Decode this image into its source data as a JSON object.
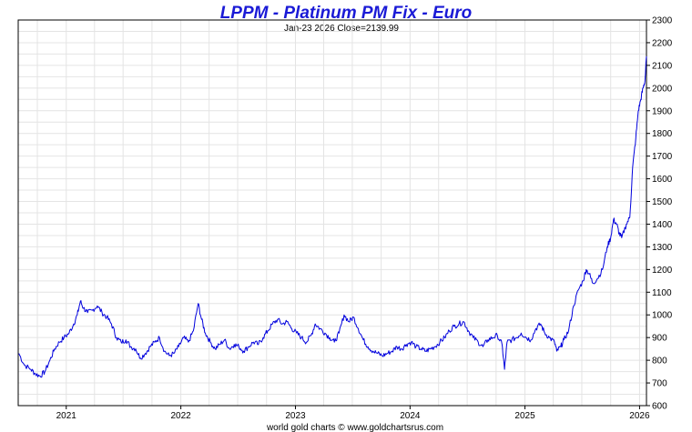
{
  "chart_data": {
    "type": "line",
    "title": "LPPM - Platinum PM Fix - Euro",
    "subtitle": "Jan-23  2026   Close=2139.99",
    "credit": "world gold charts © www.goldchartsrus.com",
    "xlabel": "",
    "ylabel": "",
    "xlim": [
      "2020-08-01",
      "2026-01-23"
    ],
    "ylim": [
      600,
      2300
    ],
    "y_ticks": [
      600,
      700,
      800,
      900,
      1000,
      1100,
      1200,
      1300,
      1400,
      1500,
      1600,
      1700,
      1800,
      1900,
      2000,
      2100,
      2200,
      2300
    ],
    "x_ticks": [
      "2021",
      "2022",
      "2023",
      "2024",
      "2025",
      "2026"
    ],
    "y_axis_side": "right",
    "grid": true,
    "colors": {
      "line": "#0000dd",
      "title": "#1a1ad6",
      "grid": "#e4e4e4"
    },
    "series": [
      {
        "x": [
          "2020-08-03",
          "2020-08-20",
          "2020-09-10",
          "2020-09-25",
          "2020-10-10",
          "2020-10-25",
          "2020-11-10",
          "2020-11-25",
          "2020-12-10",
          "2020-12-25",
          "2021-01-10",
          "2021-01-25",
          "2021-02-05",
          "2021-02-15",
          "2021-02-25",
          "2021-03-10",
          "2021-03-25",
          "2021-04-10",
          "2021-04-25",
          "2021-05-10",
          "2021-05-25",
          "2021-06-10",
          "2021-06-25",
          "2021-07-10",
          "2021-07-25",
          "2021-08-10",
          "2021-08-25",
          "2021-09-10",
          "2021-09-25",
          "2021-10-10",
          "2021-10-25",
          "2021-11-10",
          "2021-11-25",
          "2021-12-10",
          "2021-12-25",
          "2022-01-10",
          "2022-01-25",
          "2022-02-10",
          "2022-02-25",
          "2022-03-08",
          "2022-03-20",
          "2022-04-05",
          "2022-04-20",
          "2022-05-05",
          "2022-05-20",
          "2022-06-05",
          "2022-06-20",
          "2022-07-05",
          "2022-07-20",
          "2022-08-05",
          "2022-08-20",
          "2022-09-05",
          "2022-09-20",
          "2022-10-05",
          "2022-10-20",
          "2022-11-05",
          "2022-11-20",
          "2022-12-05",
          "2022-12-20",
          "2023-01-05",
          "2023-01-20",
          "2023-02-05",
          "2023-02-20",
          "2023-03-05",
          "2023-03-20",
          "2023-04-05",
          "2023-04-20",
          "2023-05-05",
          "2023-05-20",
          "2023-06-05",
          "2023-06-20",
          "2023-07-05",
          "2023-07-20",
          "2023-08-05",
          "2023-08-20",
          "2023-09-05",
          "2023-09-20",
          "2023-10-05",
          "2023-10-20",
          "2023-11-05",
          "2023-11-20",
          "2023-12-05",
          "2023-12-20",
          "2024-01-05",
          "2024-01-20",
          "2024-02-05",
          "2024-02-20",
          "2024-03-05",
          "2024-03-20",
          "2024-04-05",
          "2024-04-20",
          "2024-05-05",
          "2024-05-20",
          "2024-06-05",
          "2024-06-20",
          "2024-07-05",
          "2024-07-20",
          "2024-08-05",
          "2024-08-20",
          "2024-09-05",
          "2024-09-20",
          "2024-10-05",
          "2024-10-20",
          "2024-10-28",
          "2024-11-05",
          "2024-11-20",
          "2024-12-05",
          "2024-12-20",
          "2025-01-05",
          "2025-01-20",
          "2025-02-05",
          "2025-02-20",
          "2025-03-05",
          "2025-03-20",
          "2025-04-05",
          "2025-04-12",
          "2025-04-25",
          "2025-05-05",
          "2025-05-20",
          "2025-06-05",
          "2025-06-20",
          "2025-07-05",
          "2025-07-15",
          "2025-07-25",
          "2025-08-05",
          "2025-08-20",
          "2025-09-05",
          "2025-09-20",
          "2025-10-01",
          "2025-10-10",
          "2025-10-20",
          "2025-10-28",
          "2025-11-05",
          "2025-11-20",
          "2025-12-01",
          "2025-12-10",
          "2025-12-20",
          "2025-12-28",
          "2026-01-05",
          "2026-01-12",
          "2026-01-18",
          "2026-01-23"
        ],
        "y": [
          830,
          780,
          760,
          740,
          730,
          750,
          800,
          850,
          880,
          900,
          920,
          960,
          1000,
          1060,
          1030,
          1010,
          1020,
          1040,
          1010,
          990,
          960,
          900,
          880,
          890,
          860,
          850,
          810,
          830,
          860,
          880,
          900,
          840,
          820,
          830,
          860,
          900,
          880,
          930,
          1050,
          980,
          920,
          880,
          850,
          870,
          890,
          850,
          870,
          860,
          840,
          860,
          880,
          870,
          900,
          930,
          960,
          980,
          960,
          970,
          940,
          920,
          900,
          880,
          910,
          960,
          940,
          920,
          900,
          880,
          920,
          1000,
          970,
          990,
          940,
          890,
          860,
          840,
          830,
          820,
          830,
          840,
          860,
          850,
          870,
          880,
          860,
          850,
          840,
          850,
          860,
          880,
          900,
          930,
          950,
          960,
          970,
          930,
          900,
          880,
          860,
          890,
          900,
          910,
          870,
          760,
          880,
          890,
          900,
          920,
          900,
          890,
          940,
          960,
          920,
          900,
          880,
          840,
          860,
          890,
          930,
          1040,
          1110,
          1150,
          1200,
          1180,
          1140,
          1160,
          1200,
          1300,
          1340,
          1420,
          1400,
          1360,
          1340,
          1400,
          1430,
          1650,
          1780,
          1900,
          1950,
          2000,
          2030,
          2140
        ]
      }
    ]
  }
}
